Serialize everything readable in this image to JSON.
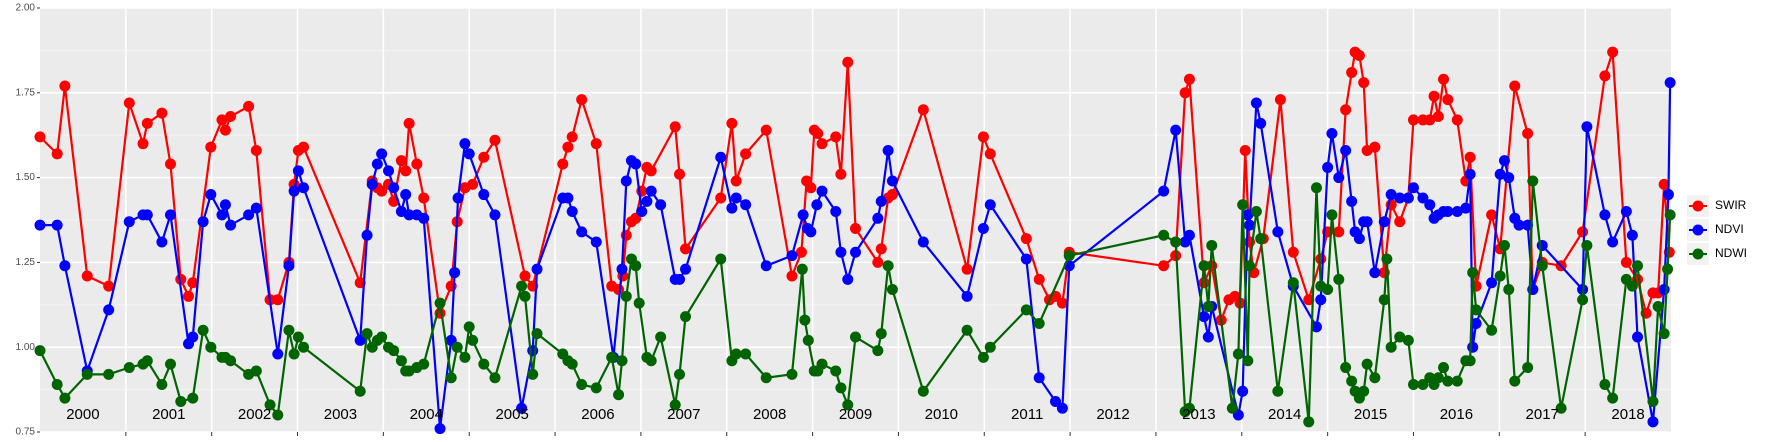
{
  "chart_data": {
    "type": "line",
    "xlim": [
      2000,
      2019
    ],
    "ylim": [
      0.75,
      2.0
    ],
    "yticks": [
      {
        "value": 0.75,
        "label": "0.75"
      },
      {
        "value": 1.0,
        "label": "1.00"
      },
      {
        "value": 1.25,
        "label": "1.25"
      },
      {
        "value": 1.5,
        "label": "1.50"
      },
      {
        "value": 1.75,
        "label": "1.75"
      },
      {
        "value": 2.0,
        "label": "2.00"
      }
    ],
    "xticks": [
      {
        "value": 2000.5,
        "label": "2000"
      },
      {
        "value": 2001.5,
        "label": "2001"
      },
      {
        "value": 2002.5,
        "label": "2002"
      },
      {
        "value": 2003.5,
        "label": "2003"
      },
      {
        "value": 2004.5,
        "label": "2004"
      },
      {
        "value": 2005.5,
        "label": "2005"
      },
      {
        "value": 2006.5,
        "label": "2006"
      },
      {
        "value": 2007.5,
        "label": "2007"
      },
      {
        "value": 2008.5,
        "label": "2008"
      },
      {
        "value": 2009.5,
        "label": "2009"
      },
      {
        "value": 2010.5,
        "label": "2010"
      },
      {
        "value": 2011.5,
        "label": "2011"
      },
      {
        "value": 2012.5,
        "label": "2012"
      },
      {
        "value": 2013.5,
        "label": "2013"
      },
      {
        "value": 2014.5,
        "label": "2014"
      },
      {
        "value": 2015.5,
        "label": "2015"
      },
      {
        "value": 2016.5,
        "label": "2016"
      },
      {
        "value": 2017.5,
        "label": "2017"
      },
      {
        "value": 2018.5,
        "label": "2018"
      }
    ],
    "x_gridlines": [
      2001,
      2002,
      2003,
      2004,
      2005,
      2006,
      2007,
      2008,
      2009,
      2010,
      2011,
      2012,
      2013,
      2014,
      2015,
      2016,
      2017,
      2018
    ],
    "grid": true,
    "legend": "right",
    "series": [
      {
        "name": "SWIR",
        "color": "#ff0000",
        "x": [
          2000.0,
          2000.2,
          2000.29,
          2000.55,
          2000.8,
          2001.04,
          2001.2,
          2001.25,
          2001.42,
          2001.52,
          2001.64,
          2001.73,
          2001.78,
          2001.99,
          2002.12,
          2002.16,
          2002.22,
          2002.43,
          2002.52,
          2002.68,
          2002.77,
          2002.9,
          2002.96,
          2003.01,
          2003.07,
          2003.73,
          2003.87,
          2003.93,
          2003.98,
          2004.06,
          2004.12,
          2004.21,
          2004.26,
          2004.3,
          2004.39,
          2004.47,
          2004.66,
          2004.79,
          2004.86,
          2004.95,
          2005.04,
          2005.17,
          2005.3,
          2005.65,
          2005.74,
          2006.09,
          2006.15,
          2006.2,
          2006.31,
          2006.48,
          2006.66,
          2006.74,
          2006.79,
          2006.83,
          2006.89,
          2006.94,
          2007.01,
          2007.07,
          2007.12,
          2007.4,
          2007.45,
          2007.52,
          2007.93,
          2008.06,
          2008.11,
          2008.22,
          2008.46,
          2008.76,
          2008.87,
          2008.93,
          2008.98,
          2009.02,
          2009.06,
          2009.11,
          2009.27,
          2009.33,
          2009.41,
          2009.5,
          2009.76,
          2009.8,
          2009.88,
          2009.93,
          2010.29,
          2010.8,
          2010.99,
          2011.07,
          2011.49,
          2011.64,
          2011.76,
          2011.83,
          2011.91,
          2011.99,
          2013.09,
          2013.23,
          2013.34,
          2013.39,
          2013.56,
          2013.65,
          2013.76,
          2013.85,
          2013.92,
          2013.98,
          2014.04,
          2014.09,
          2014.14,
          2014.25,
          2014.45,
          2014.6,
          2014.78,
          2014.92,
          2015.0,
          2015.13,
          2015.21,
          2015.28,
          2015.32,
          2015.37,
          2015.42,
          2015.46,
          2015.55,
          2015.66,
          2015.74,
          2015.84,
          2015.94,
          2016.0,
          2016.11,
          2016.19,
          2016.24,
          2016.29,
          2016.35,
          2016.4,
          2016.51,
          2016.61,
          2016.66,
          2016.73,
          2016.91,
          2017.01,
          2017.18,
          2017.33,
          2017.39,
          2017.5,
          2017.72,
          2017.97,
          2018.23,
          2018.32,
          2018.48,
          2018.61,
          2018.71,
          2018.79,
          2018.85,
          2018.92,
          2018.98
        ],
        "values": [
          1.62,
          1.57,
          1.77,
          1.21,
          1.18,
          1.72,
          1.6,
          1.66,
          1.69,
          1.54,
          1.2,
          1.15,
          1.19,
          1.59,
          1.67,
          1.64,
          1.68,
          1.71,
          1.58,
          1.14,
          1.14,
          1.25,
          1.48,
          1.58,
          1.59,
          1.19,
          1.49,
          1.47,
          1.46,
          1.48,
          1.43,
          1.55,
          1.52,
          1.66,
          1.54,
          1.44,
          1.1,
          1.18,
          1.37,
          1.47,
          1.48,
          1.56,
          1.61,
          1.21,
          1.18,
          1.54,
          1.59,
          1.62,
          1.73,
          1.6,
          1.18,
          1.17,
          1.21,
          1.33,
          1.37,
          1.38,
          1.46,
          1.53,
          1.52,
          1.65,
          1.51,
          1.29,
          1.44,
          1.66,
          1.49,
          1.57,
          1.64,
          1.21,
          1.28,
          1.49,
          1.47,
          1.64,
          1.63,
          1.6,
          1.62,
          1.51,
          1.84,
          1.35,
          1.25,
          1.29,
          1.44,
          1.45,
          1.7,
          1.23,
          1.62,
          1.57,
          1.32,
          1.2,
          1.14,
          1.15,
          1.13,
          1.28,
          1.24,
          1.27,
          1.75,
          1.79,
          1.19,
          1.24,
          1.08,
          1.14,
          1.15,
          1.13,
          1.58,
          1.31,
          1.22,
          1.32,
          1.73,
          1.28,
          1.14,
          1.26,
          1.34,
          1.34,
          1.7,
          1.81,
          1.87,
          1.86,
          1.78,
          1.58,
          1.59,
          1.22,
          1.42,
          1.37,
          1.44,
          1.67,
          1.67,
          1.67,
          1.74,
          1.68,
          1.79,
          1.73,
          1.67,
          1.49,
          1.56,
          1.18,
          1.39,
          1.29,
          1.77,
          1.63,
          1.17,
          1.25,
          1.24,
          1.34,
          1.8,
          1.87,
          1.25,
          1.2,
          1.1,
          1.16,
          1.16,
          1.48,
          1.28
        ]
      },
      {
        "name": "NDVI",
        "color": "#0000ff",
        "x": [
          2000.0,
          2000.2,
          2000.29,
          2000.55,
          2000.8,
          2001.04,
          2001.2,
          2001.25,
          2001.42,
          2001.52,
          2001.73,
          2001.78,
          2001.9,
          2001.99,
          2002.12,
          2002.16,
          2002.22,
          2002.43,
          2002.52,
          2002.77,
          2002.9,
          2002.96,
          2003.01,
          2003.07,
          2003.73,
          2003.81,
          2003.87,
          2003.93,
          2003.98,
          2004.06,
          2004.12,
          2004.21,
          2004.26,
          2004.3,
          2004.39,
          2004.47,
          2004.66,
          2004.79,
          2004.83,
          2004.87,
          2004.95,
          2005.0,
          2005.17,
          2005.3,
          2005.61,
          2005.74,
          2005.79,
          2006.09,
          2006.15,
          2006.2,
          2006.31,
          2006.48,
          2006.68,
          2006.78,
          2006.83,
          2006.89,
          2006.94,
          2007.01,
          2007.07,
          2007.12,
          2007.23,
          2007.4,
          2007.45,
          2007.52,
          2007.93,
          2008.06,
          2008.11,
          2008.22,
          2008.46,
          2008.76,
          2008.89,
          2008.94,
          2008.98,
          2009.05,
          2009.11,
          2009.27,
          2009.33,
          2009.41,
          2009.5,
          2009.76,
          2009.8,
          2009.88,
          2009.93,
          2010.29,
          2010.8,
          2010.99,
          2011.07,
          2011.49,
          2011.64,
          2011.83,
          2011.91,
          2011.99,
          2013.09,
          2013.23,
          2013.34,
          2013.39,
          2013.56,
          2013.61,
          2013.65,
          2013.96,
          2014.01,
          2014.07,
          2014.09,
          2014.17,
          2014.22,
          2014.42,
          2014.6,
          2014.87,
          2014.92,
          2015.0,
          2015.05,
          2015.13,
          2015.21,
          2015.28,
          2015.32,
          2015.37,
          2015.42,
          2015.46,
          2015.55,
          2015.66,
          2015.74,
          2015.84,
          2015.94,
          2016.0,
          2016.11,
          2016.19,
          2016.24,
          2016.29,
          2016.35,
          2016.4,
          2016.51,
          2016.61,
          2016.66,
          2016.69,
          2016.73,
          2016.91,
          2017.01,
          2017.06,
          2017.11,
          2017.18,
          2017.23,
          2017.33,
          2017.39,
          2017.5,
          2017.97,
          2018.02,
          2018.23,
          2018.32,
          2018.48,
          2018.55,
          2018.61,
          2018.79,
          2018.92,
          2018.97,
          2018.99
        ],
        "values": [
          1.36,
          1.36,
          1.24,
          0.93,
          1.11,
          1.37,
          1.39,
          1.39,
          1.31,
          1.39,
          1.01,
          1.03,
          1.37,
          1.45,
          1.39,
          1.42,
          1.36,
          1.39,
          1.41,
          0.98,
          1.24,
          1.46,
          1.52,
          1.47,
          1.02,
          1.33,
          1.48,
          1.54,
          1.57,
          1.52,
          1.47,
          1.4,
          1.45,
          1.39,
          1.39,
          1.38,
          0.76,
          1.02,
          1.22,
          1.44,
          1.6,
          1.57,
          1.45,
          1.39,
          0.82,
          0.99,
          1.23,
          1.44,
          1.44,
          1.4,
          1.34,
          1.31,
          0.97,
          1.23,
          1.49,
          1.55,
          1.54,
          1.4,
          1.43,
          1.46,
          1.42,
          1.2,
          1.2,
          1.23,
          1.56,
          1.41,
          1.44,
          1.42,
          1.24,
          1.27,
          1.39,
          1.35,
          1.34,
          1.42,
          1.46,
          1.4,
          1.28,
          1.2,
          1.28,
          1.38,
          1.43,
          1.58,
          1.49,
          1.31,
          1.15,
          1.35,
          1.42,
          1.26,
          0.91,
          0.84,
          0.82,
          1.24,
          1.46,
          1.64,
          1.31,
          1.33,
          1.09,
          1.03,
          1.12,
          0.8,
          0.87,
          1.39,
          1.36,
          1.72,
          1.66,
          1.34,
          1.18,
          1.06,
          1.14,
          1.53,
          1.63,
          1.5,
          1.58,
          1.43,
          1.34,
          1.32,
          1.37,
          1.37,
          1.22,
          1.37,
          1.45,
          1.44,
          1.44,
          1.47,
          1.44,
          1.42,
          1.38,
          1.39,
          1.4,
          1.4,
          1.4,
          1.41,
          1.51,
          1.0,
          1.07,
          1.19,
          1.51,
          1.55,
          1.5,
          1.38,
          1.36,
          1.36,
          1.17,
          1.3,
          1.17,
          1.65,
          1.39,
          1.31,
          1.4,
          1.33,
          1.03,
          0.78,
          1.17,
          1.45,
          1.78
        ]
      },
      {
        "name": "NDWI",
        "color": "#006400",
        "x": [
          2000.0,
          2000.2,
          2000.29,
          2000.55,
          2000.8,
          2001.04,
          2001.2,
          2001.25,
          2001.42,
          2001.52,
          2001.64,
          2001.78,
          2001.9,
          2001.99,
          2002.12,
          2002.16,
          2002.22,
          2002.43,
          2002.52,
          2002.68,
          2002.77,
          2002.9,
          2002.96,
          2003.01,
          2003.07,
          2003.73,
          2003.81,
          2003.87,
          2003.93,
          2003.98,
          2004.06,
          2004.12,
          2004.21,
          2004.26,
          2004.3,
          2004.39,
          2004.47,
          2004.66,
          2004.79,
          2004.86,
          2004.95,
          2005.0,
          2005.04,
          2005.17,
          2005.3,
          2005.61,
          2005.65,
          2005.74,
          2005.79,
          2006.09,
          2006.15,
          2006.2,
          2006.31,
          2006.48,
          2006.66,
          2006.74,
          2006.78,
          2006.83,
          2006.89,
          2006.94,
          2006.98,
          2007.07,
          2007.12,
          2007.23,
          2007.4,
          2007.45,
          2007.52,
          2007.93,
          2008.06,
          2008.11,
          2008.22,
          2008.46,
          2008.76,
          2008.88,
          2008.91,
          2008.95,
          2009.02,
          2009.06,
          2009.11,
          2009.27,
          2009.33,
          2009.41,
          2009.5,
          2009.76,
          2009.8,
          2009.88,
          2009.93,
          2010.29,
          2010.8,
          2010.99,
          2011.07,
          2011.49,
          2011.64,
          2011.99,
          2013.09,
          2013.23,
          2013.34,
          2013.39,
          2013.56,
          2013.61,
          2013.65,
          2013.89,
          2013.96,
          2014.01,
          2014.07,
          2014.09,
          2014.17,
          2014.22,
          2014.42,
          2014.6,
          2014.78,
          2014.87,
          2014.92,
          2015.0,
          2015.05,
          2015.13,
          2015.21,
          2015.28,
          2015.32,
          2015.37,
          2015.42,
          2015.46,
          2015.55,
          2015.66,
          2015.69,
          2015.74,
          2015.84,
          2015.94,
          2016.0,
          2016.11,
          2016.19,
          2016.24,
          2016.29,
          2016.35,
          2016.4,
          2016.51,
          2016.61,
          2016.66,
          2016.69,
          2016.73,
          2016.91,
          2017.01,
          2017.06,
          2017.11,
          2017.18,
          2017.33,
          2017.39,
          2017.5,
          2017.72,
          2017.97,
          2018.02,
          2018.23,
          2018.32,
          2018.48,
          2018.55,
          2018.61,
          2018.79,
          2018.85,
          2018.92,
          2018.96,
          2018.99
        ],
        "values": [
          0.99,
          0.89,
          0.85,
          0.92,
          0.92,
          0.94,
          0.95,
          0.96,
          0.89,
          0.95,
          0.84,
          0.85,
          1.05,
          1.0,
          0.97,
          0.97,
          0.96,
          0.92,
          0.93,
          0.83,
          0.8,
          1.05,
          0.98,
          1.03,
          1.0,
          0.87,
          1.04,
          1.0,
          1.02,
          1.03,
          1.0,
          0.99,
          0.96,
          0.93,
          0.93,
          0.94,
          0.95,
          1.13,
          0.91,
          1.0,
          0.97,
          1.06,
          1.02,
          0.95,
          0.91,
          1.18,
          1.15,
          0.92,
          1.04,
          0.98,
          0.96,
          0.95,
          0.89,
          0.88,
          0.97,
          0.86,
          0.96,
          1.15,
          1.26,
          1.24,
          1.13,
          0.97,
          0.96,
          1.03,
          0.83,
          0.92,
          1.09,
          1.26,
          0.96,
          0.98,
          0.98,
          0.91,
          0.92,
          1.23,
          1.08,
          1.02,
          0.93,
          0.93,
          0.95,
          0.93,
          0.88,
          0.83,
          1.03,
          0.99,
          1.04,
          1.24,
          1.17,
          0.87,
          1.05,
          0.97,
          1.0,
          1.11,
          1.07,
          1.27,
          1.33,
          1.31,
          0.81,
          0.82,
          1.24,
          1.12,
          1.3,
          0.82,
          0.98,
          1.42,
          0.96,
          1.24,
          1.4,
          1.32,
          0.87,
          1.19,
          0.78,
          1.47,
          1.18,
          1.17,
          1.39,
          1.2,
          0.94,
          0.9,
          0.87,
          0.85,
          0.87,
          0.95,
          0.91,
          1.14,
          1.26,
          1.0,
          1.03,
          1.02,
          0.89,
          0.89,
          0.91,
          0.89,
          0.91,
          0.94,
          0.9,
          0.9,
          0.96,
          0.96,
          1.22,
          1.11,
          1.05,
          1.21,
          1.3,
          1.17,
          0.9,
          0.94,
          1.49,
          1.24,
          0.82,
          1.14,
          1.3,
          0.89,
          0.85,
          1.2,
          1.18,
          1.24,
          0.84,
          1.12,
          1.04,
          1.23,
          1.39
        ]
      }
    ]
  }
}
